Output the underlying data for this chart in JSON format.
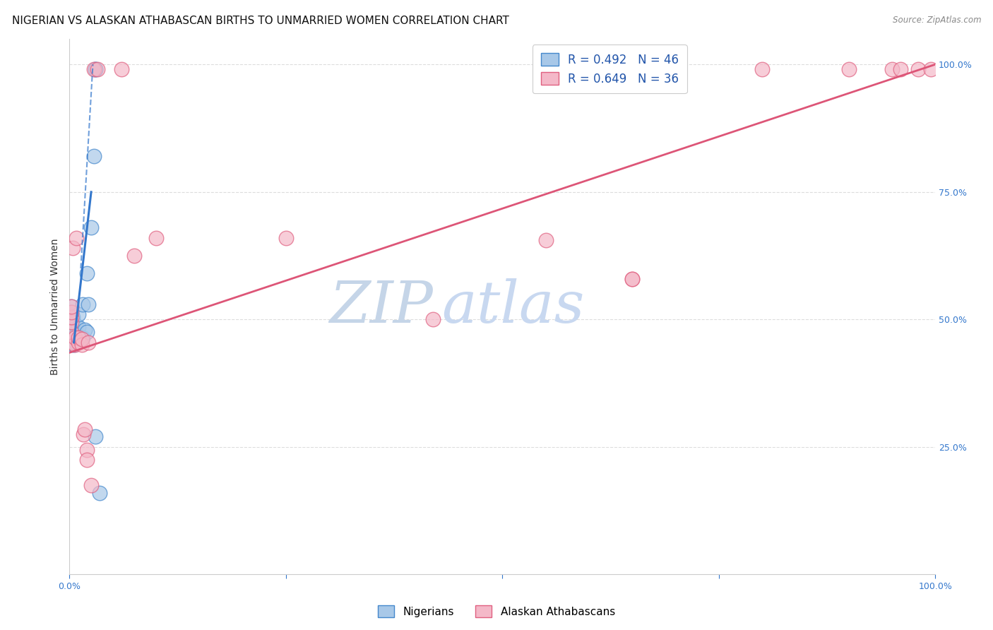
{
  "title": "NIGERIAN VS ALASKAN ATHABASCAN BIRTHS TO UNMARRIED WOMEN CORRELATION CHART",
  "source": "Source: ZipAtlas.com",
  "ylabel": "Births to Unmarried Women",
  "blue_label": "Nigerians",
  "pink_label": "Alaskan Athabascans",
  "blue_R": 0.492,
  "blue_N": 46,
  "pink_R": 0.649,
  "pink_N": 36,
  "blue_color": "#a8c8e8",
  "pink_color": "#f4b8c8",
  "blue_edge_color": "#4488cc",
  "pink_edge_color": "#e06080",
  "blue_line_color": "#3377cc",
  "pink_line_color": "#dd5577",
  "blue_scatter": [
    [
      0.002,
      0.455
    ],
    [
      0.002,
      0.465
    ],
    [
      0.002,
      0.475
    ],
    [
      0.002,
      0.485
    ],
    [
      0.002,
      0.495
    ],
    [
      0.002,
      0.505
    ],
    [
      0.002,
      0.515
    ],
    [
      0.002,
      0.525
    ],
    [
      0.003,
      0.45
    ],
    [
      0.003,
      0.46
    ],
    [
      0.003,
      0.47
    ],
    [
      0.003,
      0.48
    ],
    [
      0.003,
      0.49
    ],
    [
      0.003,
      0.5
    ],
    [
      0.004,
      0.455
    ],
    [
      0.004,
      0.465
    ],
    [
      0.004,
      0.475
    ],
    [
      0.004,
      0.485
    ],
    [
      0.004,
      0.495
    ],
    [
      0.004,
      0.505
    ],
    [
      0.005,
      0.45
    ],
    [
      0.005,
      0.46
    ],
    [
      0.005,
      0.47
    ],
    [
      0.005,
      0.48
    ],
    [
      0.006,
      0.455
    ],
    [
      0.006,
      0.465
    ],
    [
      0.007,
      0.47
    ],
    [
      0.007,
      0.49
    ],
    [
      0.008,
      0.455
    ],
    [
      0.008,
      0.47
    ],
    [
      0.009,
      0.46
    ],
    [
      0.01,
      0.485
    ],
    [
      0.01,
      0.51
    ],
    [
      0.012,
      0.465
    ],
    [
      0.015,
      0.465
    ],
    [
      0.015,
      0.53
    ],
    [
      0.018,
      0.48
    ],
    [
      0.02,
      0.475
    ],
    [
      0.02,
      0.59
    ],
    [
      0.022,
      0.53
    ],
    [
      0.025,
      0.68
    ],
    [
      0.03,
      0.27
    ],
    [
      0.035,
      0.16
    ],
    [
      0.03,
      0.99
    ],
    [
      0.03,
      0.99
    ],
    [
      0.028,
      0.82
    ]
  ],
  "pink_scatter": [
    [
      0.002,
      0.455
    ],
    [
      0.002,
      0.475
    ],
    [
      0.002,
      0.495
    ],
    [
      0.002,
      0.505
    ],
    [
      0.002,
      0.515
    ],
    [
      0.002,
      0.525
    ],
    [
      0.004,
      0.64
    ],
    [
      0.006,
      0.45
    ],
    [
      0.006,
      0.465
    ],
    [
      0.008,
      0.66
    ],
    [
      0.01,
      0.455
    ],
    [
      0.01,
      0.465
    ],
    [
      0.014,
      0.45
    ],
    [
      0.014,
      0.462
    ],
    [
      0.016,
      0.275
    ],
    [
      0.018,
      0.285
    ],
    [
      0.02,
      0.245
    ],
    [
      0.02,
      0.225
    ],
    [
      0.022,
      0.455
    ],
    [
      0.025,
      0.175
    ],
    [
      0.028,
      0.99
    ],
    [
      0.032,
      0.99
    ],
    [
      0.06,
      0.99
    ],
    [
      0.075,
      0.625
    ],
    [
      0.1,
      0.66
    ],
    [
      0.25,
      0.66
    ],
    [
      0.42,
      0.5
    ],
    [
      0.55,
      0.655
    ],
    [
      0.65,
      0.58
    ],
    [
      0.65,
      0.58
    ],
    [
      0.8,
      0.99
    ],
    [
      0.9,
      0.99
    ],
    [
      0.95,
      0.99
    ],
    [
      0.96,
      0.99
    ],
    [
      0.98,
      0.99
    ],
    [
      0.995,
      0.99
    ]
  ],
  "watermark_text1": "ZIP",
  "watermark_text2": "atlas",
  "watermark_color1": "#c5d5e8",
  "watermark_color2": "#c8d8f0",
  "bg_color": "#ffffff",
  "grid_color": "#dddddd",
  "title_fontsize": 11,
  "axis_label_fontsize": 10,
  "tick_fontsize": 9,
  "legend_fontsize": 12,
  "ytick_vals": [
    0.0,
    0.25,
    0.5,
    0.75,
    1.0
  ],
  "ytick_labels": [
    "",
    "25.0%",
    "50.0%",
    "75.0%",
    "100.0%"
  ],
  "xtick_vals": [
    0.0,
    0.25,
    0.5,
    0.75,
    1.0
  ],
  "xtick_labels": [
    "0.0%",
    "",
    "",
    "",
    "100.0%"
  ],
  "xlim": [
    0.0,
    1.0
  ],
  "ylim": [
    0.0,
    1.05
  ]
}
